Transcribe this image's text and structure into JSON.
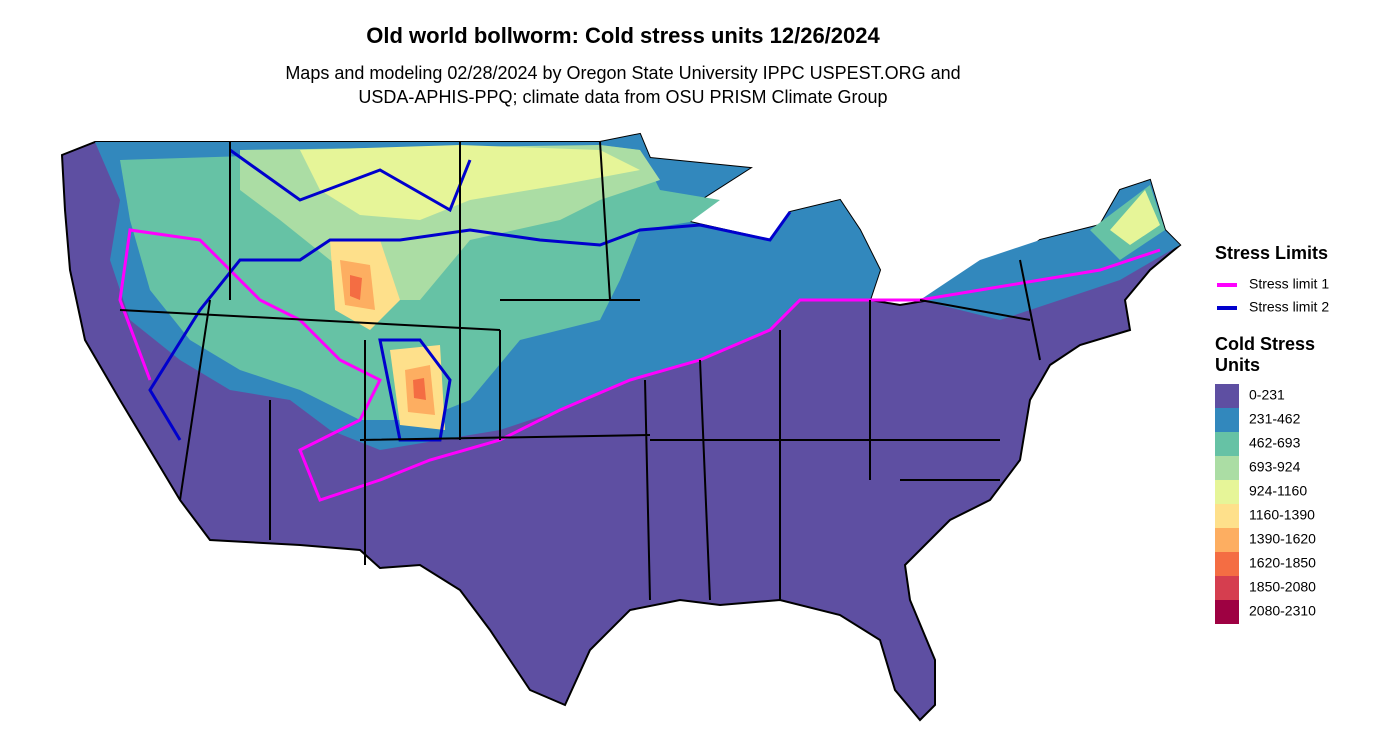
{
  "title": "Old world bollworm: Cold stress units 12/26/2024",
  "subtitle": [
    "Maps and modeling 02/28/2024 by Oregon State University IPPC USPEST.ORG and",
    "USDA-APHIS-PPQ; climate data from OSU PRISM Climate Group"
  ],
  "stress_legend": {
    "title": "Stress Limits",
    "items": [
      {
        "label": "Stress limit 1",
        "color": "#ff00ff"
      },
      {
        "label": "Stress limit 2",
        "color": "#0000cd"
      }
    ]
  },
  "units_legend": {
    "title": [
      "Cold Stress",
      "Units"
    ],
    "items": [
      {
        "label": "0-231",
        "color": "#5e4fa2"
      },
      {
        "label": "231-462",
        "color": "#3288bd"
      },
      {
        "label": "462-693",
        "color": "#66c2a5"
      },
      {
        "label": "693-924",
        "color": "#abdda4"
      },
      {
        "label": "924-1160",
        "color": "#e6f598"
      },
      {
        "label": "1160-1390",
        "color": "#fee08b"
      },
      {
        "label": "1390-1620",
        "color": "#fdae61"
      },
      {
        "label": "1620-1850",
        "color": "#f46d43"
      },
      {
        "label": "1850-2080",
        "color": "#d53e4f"
      },
      {
        "label": "2080-2310",
        "color": "#9e0142"
      }
    ]
  }
}
